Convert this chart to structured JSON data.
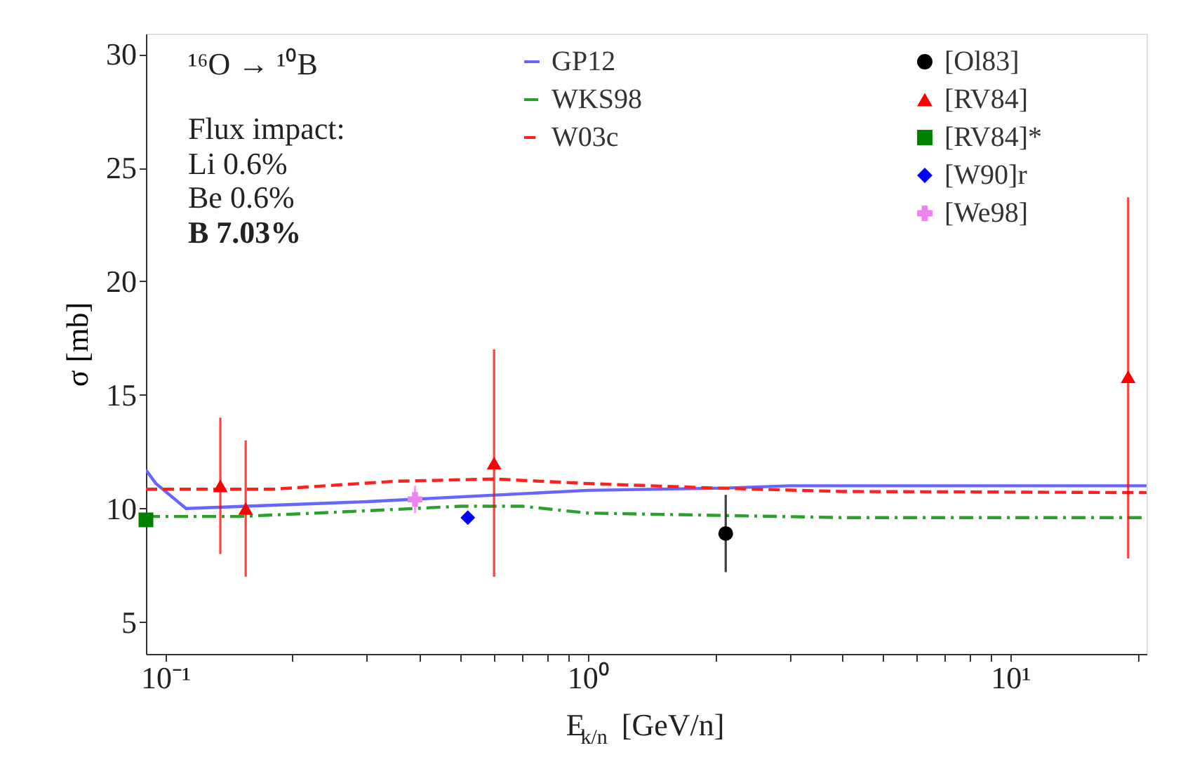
{
  "chart_data": {
    "type": "line",
    "xlabel": "E$_{k/n}$ [GeV/n]",
    "ylabel": "σ [mb]",
    "annotations": [
      "¹⁶O → ¹⁰B",
      "Flux impact:",
      "Li 0.6%",
      "Be 0.6%",
      "B 7.03%"
    ],
    "log": "x",
    "grid": false,
    "legend": "top",
    "xlim": [
      0.09,
      21
    ],
    "ylim": [
      3.6,
      30.9
    ],
    "xticks": [
      {
        "value": 0.1,
        "label": "10⁻¹"
      },
      {
        "value": 0.2,
        "label": null
      },
      {
        "value": 0.3,
        "label": null
      },
      {
        "value": 0.4,
        "label": null
      },
      {
        "value": 0.5,
        "label": null
      },
      {
        "value": 0.6,
        "label": null
      },
      {
        "value": 0.7,
        "label": null
      },
      {
        "value": 0.8,
        "label": null
      },
      {
        "value": 0.9,
        "label": null
      },
      {
        "value": 1,
        "label": "10⁰"
      },
      {
        "value": 2,
        "label": null
      },
      {
        "value": 3,
        "label": null
      },
      {
        "value": 4,
        "label": null
      },
      {
        "value": 5,
        "label": null
      },
      {
        "value": 6,
        "label": null
      },
      {
        "value": 7,
        "label": null
      },
      {
        "value": 8,
        "label": null
      },
      {
        "value": 9,
        "label": null
      },
      {
        "value": 10,
        "label": "10¹"
      },
      {
        "value": 20,
        "label": null
      }
    ],
    "yticks": [
      5,
      10,
      15,
      20,
      25,
      30
    ],
    "series": [
      {
        "name": "GP12",
        "color": "#6666ff",
        "line_style": "solid",
        "x": [
          0.09,
          0.095,
          0.112,
          0.3,
          1,
          2.12,
          3,
          21
        ],
        "values": [
          11.7,
          11.1,
          10.0,
          10.3,
          10.8,
          10.9,
          11.0,
          11.0
        ]
      },
      {
        "name": "WKS98",
        "color": "#2ca02c",
        "line_style": "dashdot",
        "x": [
          0.09,
          0.15,
          0.3,
          0.5,
          0.7,
          1,
          2,
          4,
          21
        ],
        "values": [
          9.65,
          9.65,
          9.9,
          10.1,
          10.1,
          9.8,
          9.7,
          9.6,
          9.6
        ]
      },
      {
        "name": "W03c",
        "color": "#ff2020",
        "line_style": "dashed",
        "x": [
          0.09,
          0.18,
          0.35,
          0.6,
          1,
          2,
          4,
          21
        ],
        "values": [
          10.85,
          10.85,
          11.2,
          11.3,
          11.1,
          10.9,
          10.75,
          10.7
        ]
      },
      {
        "name": "[Ol83]",
        "type": "scatter",
        "color": "#000000",
        "marker": "circle",
        "x": [
          2.12
        ],
        "values": [
          8.9
        ],
        "errors": [
          [
            7.2,
            10.6
          ]
        ]
      },
      {
        "name": "[RV84]",
        "type": "scatter",
        "color": "#ff0000",
        "marker": "triangle",
        "x": [
          0.135,
          0.155,
          0.6,
          19.0
        ],
        "values": [
          11,
          10,
          12,
          15.8
        ],
        "errors": [
          [
            8,
            14
          ],
          [
            7,
            13
          ],
          [
            7,
            17
          ],
          [
            7.8,
            23.7
          ]
        ]
      },
      {
        "name": "[RV84]*",
        "type": "scatter",
        "color": "#008000",
        "marker": "square",
        "x": [
          0.09
        ],
        "values": [
          9.5
        ],
        "errors": [
          null
        ]
      },
      {
        "name": "[W90]r",
        "type": "scatter",
        "color": "#0000ff",
        "marker": "diamond",
        "x": [
          0.52
        ],
        "values": [
          9.6
        ],
        "errors": [
          null
        ]
      },
      {
        "name": "[We98]",
        "type": "scatter",
        "color": "#ee82ee",
        "marker": "cross",
        "x": [
          0.39
        ],
        "values": [
          10.4
        ],
        "errors": [
          [
            9.8,
            11.0
          ]
        ]
      }
    ]
  }
}
